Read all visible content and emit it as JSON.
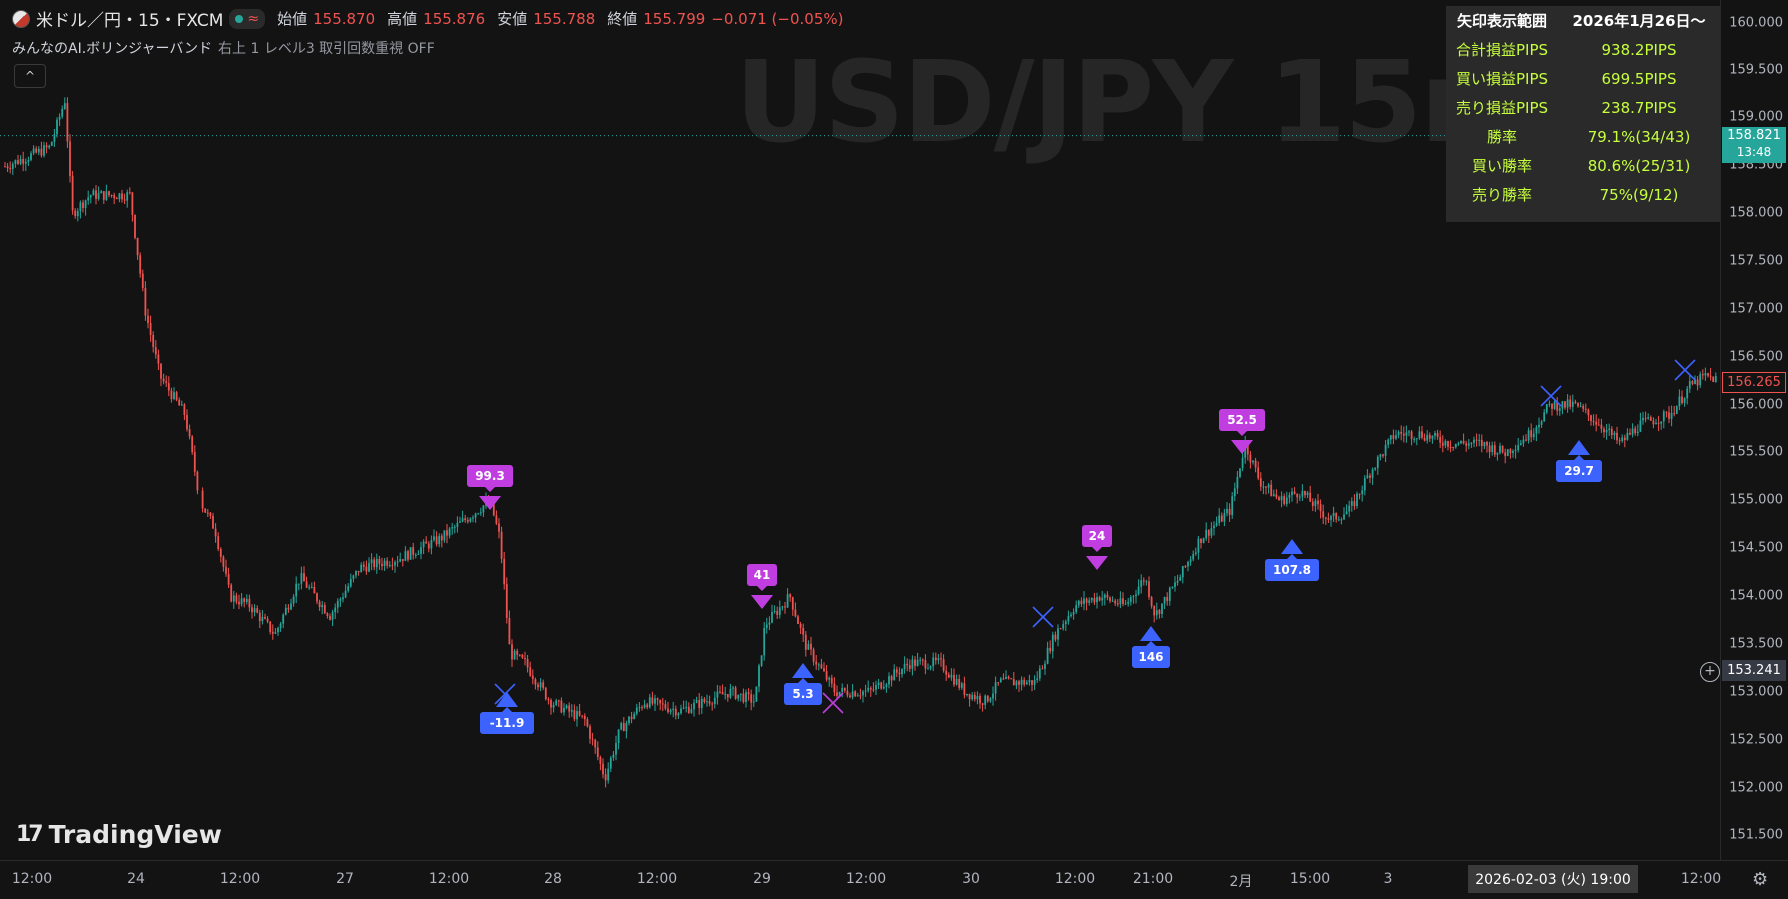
{
  "header": {
    "symbol": "米ドル／円・15・FXCM",
    "open_label": "始値",
    "open": "155.870",
    "high_label": "高値",
    "high": "155.876",
    "low_label": "安値",
    "low": "155.788",
    "close_label": "終値",
    "close": "155.799",
    "change": "−0.071 (−0.05%)"
  },
  "indicator": {
    "name": "みんなのAI.ボリンジャーバンド",
    "params": "右上 1 レベル3 取引回数重視 OFF",
    "collapse_icon": "^"
  },
  "watermark": "USD/JPY 15m",
  "branding": {
    "logo_text": "TradingView",
    "logo_mark": "17"
  },
  "stats_table": {
    "header_label": "矢印表示範囲",
    "header_value": "2026年1月26日〜",
    "rows": [
      {
        "label": "合計損益PIPS",
        "value": "938.2PIPS"
      },
      {
        "label": "買い損益PIPS",
        "value": "699.5PIPS"
      },
      {
        "label": "売り損益PIPS",
        "value": "238.7PIPS"
      },
      {
        "label": "勝率",
        "value": "79.1%(34/43)"
      },
      {
        "label": "買い勝率",
        "value": "80.6%(25/31)"
      },
      {
        "label": "売り勝率",
        "value": "75%(9/12)"
      }
    ]
  },
  "price_axis": {
    "labels": [
      "160.000",
      "159.500",
      "159.000",
      "158.500",
      "158.000",
      "157.500",
      "157.000",
      "156.500",
      "156.000",
      "155.500",
      "155.000",
      "154.500",
      "154.000",
      "153.500",
      "153.000",
      "152.500",
      "152.000",
      "151.500"
    ],
    "current_price": "158.821",
    "countdown": "13:48",
    "last_price": "156.265",
    "crosshair_price": "153.241",
    "colors": {
      "current_tag": "#26a69a",
      "last_tag": "#ef5350",
      "crosshair_tag": "#363a45"
    }
  },
  "time_axis": {
    "labels": [
      "12:00",
      "24",
      "12:00",
      "27",
      "12:00",
      "28",
      "12:00",
      "29",
      "12:00",
      "30",
      "12:00",
      "21:00",
      "2月",
      "15:00",
      "3",
      "12:00"
    ],
    "crosshair_time": "2026-02-03 (火)  19:00"
  },
  "signals": [
    {
      "kind": "sell",
      "label": "99.3"
    },
    {
      "kind": "buy",
      "label": "-11.9"
    },
    {
      "kind": "sell",
      "label": "41"
    },
    {
      "kind": "buy",
      "label": "5.3"
    },
    {
      "kind": "sell",
      "label": "24"
    },
    {
      "kind": "buy",
      "label": "146"
    },
    {
      "kind": "sell",
      "label": "52.5"
    },
    {
      "kind": "buy",
      "label": "107.8"
    },
    {
      "kind": "buy",
      "label": "29.7"
    }
  ],
  "colors": {
    "up": "#26a69a",
    "down": "#ef5350",
    "sell": "#c03ee0",
    "buy": "#3d63ff",
    "stats_text": "#c6ff3d"
  },
  "icons": {
    "chart_settings": "gear-icon",
    "add_alert": "plus-circle-icon"
  }
}
